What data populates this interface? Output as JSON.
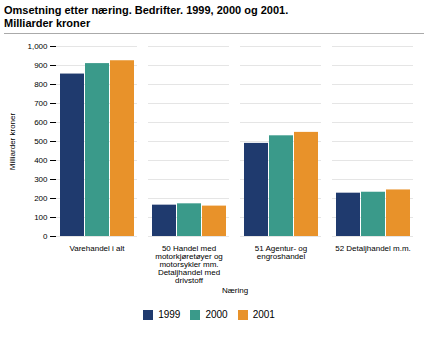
{
  "chart_data": {
    "type": "bar",
    "title": "Omsetning etter næring. Bedrifter. 1999, 2000 og 2001.",
    "subtitle": "Milliarder kroner",
    "ylabel": "Milliarder kroner",
    "xlabel": "Næring",
    "categories": [
      "Varehandel i alt",
      "50 Handel med\nmotorkjøretøyer og\nmotorsykler mm.\nDetaljhandel med\ndrivstoff",
      "51 Agentur- og\nengroshandel",
      "52 Detaljhandel m.m."
    ],
    "series": [
      {
        "name": "1999",
        "color": "#1f3a6e",
        "values": [
          855,
          165,
          490,
          228
        ]
      },
      {
        "name": "2000",
        "color": "#3a9a8a",
        "values": [
          910,
          172,
          530,
          233
        ]
      },
      {
        "name": "2001",
        "color": "#e8922a",
        "values": [
          925,
          160,
          548,
          245
        ]
      }
    ],
    "ylim": [
      0,
      1000
    ],
    "yticks": [
      0,
      100,
      200,
      300,
      400,
      500,
      600,
      700,
      800,
      900,
      1000
    ],
    "grid": true,
    "legend": "bottom"
  }
}
